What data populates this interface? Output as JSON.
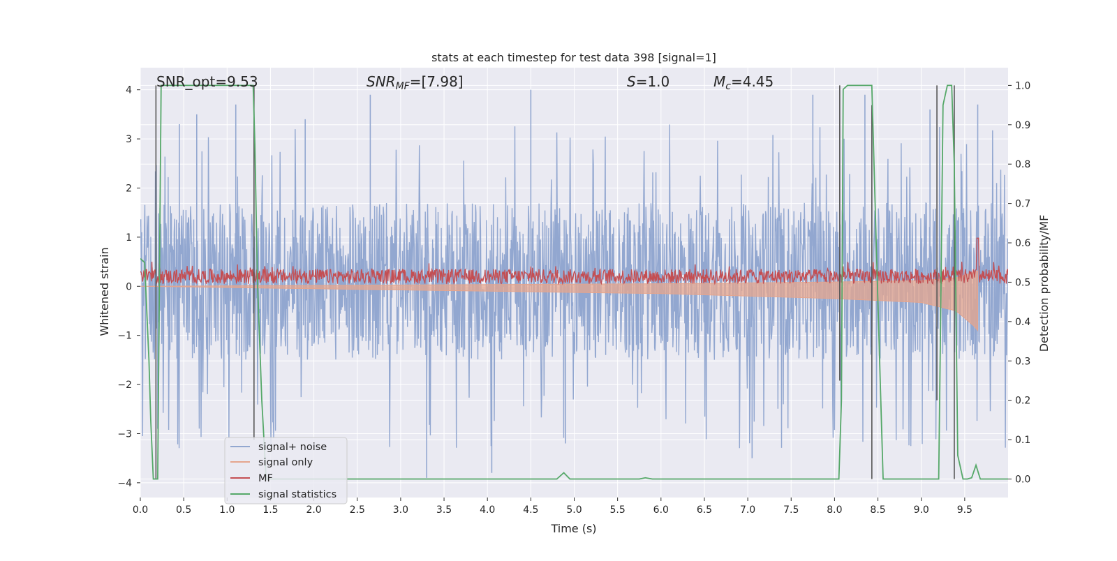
{
  "chart_data": {
    "type": "line",
    "title": "stats at each timestep for test data 398 [signal=1]",
    "xlabel": "Time (s)",
    "ylabel": "Whitened strain",
    "y2label": "Detection probability/MF",
    "xlim": [
      0.0,
      10.0
    ],
    "ylim": [
      -4.3,
      4.45
    ],
    "y2lim": [
      -0.047,
      1.045
    ],
    "xticks": [
      "0.0",
      "0.5",
      "1.0",
      "1.5",
      "2.0",
      "2.5",
      "3.0",
      "3.5",
      "4.0",
      "4.5",
      "5.0",
      "5.5",
      "6.0",
      "6.5",
      "7.0",
      "7.5",
      "8.0",
      "8.5",
      "9.0",
      "9.5"
    ],
    "yticks": [
      "−4",
      "−3",
      "−2",
      "−1",
      "0",
      "1",
      "2",
      "3",
      "4"
    ],
    "y2ticks": [
      "0.0",
      "0.1",
      "0.2",
      "0.3",
      "0.4",
      "0.5",
      "0.6",
      "0.7",
      "0.8",
      "0.9",
      "1.0"
    ],
    "grid": true,
    "legend_position": "lower-left",
    "annotations": {
      "snr_opt": "SNR_opt=9.53",
      "snr_mf_sym": "SNR",
      "snr_mf_sub": "MF",
      "snr_mf_val": "=[7.98]",
      "s_sym": "S",
      "s_val": "=1.0",
      "mc_sym": "M",
      "mc_sub": "c",
      "mc_val": "=4.45"
    },
    "colors": {
      "signal_noise": "#92a7d0",
      "signal_only": "#e5a58d",
      "mf": "#c44e52",
      "signal_statistics": "#55a868",
      "markers": "#555555",
      "plot_bg": "#eaeaf2"
    },
    "series": [
      {
        "name": "signal+ noise",
        "axis": "left",
        "noise_band": [
          -1.5,
          1.7
        ],
        "peak_spikes": [
          {
            "x": 0.2,
            "y": -2.9
          },
          {
            "x": 0.45,
            "y": 3.3
          },
          {
            "x": 0.65,
            "y": 3.5
          },
          {
            "x": 1.1,
            "y": 3.7
          },
          {
            "x": 1.9,
            "y": 3.4
          },
          {
            "x": 2.65,
            "y": 3.9
          },
          {
            "x": 3.3,
            "y": -3.9
          },
          {
            "x": 4.05,
            "y": -3.8
          },
          {
            "x": 4.5,
            "y": 4.0
          },
          {
            "x": 4.9,
            "y": -3.2
          },
          {
            "x": 7.05,
            "y": -3.5
          },
          {
            "x": 7.75,
            "y": 3.9
          },
          {
            "x": 8.35,
            "y": 3.9
          },
          {
            "x": 9.1,
            "y": 3.6
          },
          {
            "x": 9.65,
            "y": 3.7
          }
        ]
      },
      {
        "name": "signal only",
        "axis": "left",
        "envelope": [
          {
            "x": 0.0,
            "y": 0.0
          },
          {
            "x": 2.0,
            "y": 0.05
          },
          {
            "x": 4.0,
            "y": 0.1
          },
          {
            "x": 6.0,
            "y": 0.15
          },
          {
            "x": 8.0,
            "y": 0.25
          },
          {
            "x": 9.0,
            "y": 0.33
          },
          {
            "x": 9.4,
            "y": 0.5
          },
          {
            "x": 9.6,
            "y": 0.8
          },
          {
            "x": 9.65,
            "y": 0.9
          }
        ]
      },
      {
        "name": "MF",
        "axis": "left",
        "band": [
          0.05,
          0.35
        ],
        "peak": {
          "x": 9.65,
          "y": 0.98
        }
      },
      {
        "name": "signal statistics",
        "axis": "right",
        "x": [
          0.0,
          0.05,
          0.1,
          0.12,
          0.15,
          0.2,
          0.24,
          0.27,
          0.3,
          0.5,
          1.0,
          1.3,
          1.32,
          1.35,
          1.4,
          1.45,
          1.5,
          2.0,
          3.0,
          4.0,
          4.8,
          4.88,
          4.95,
          5.5,
          5.75,
          5.82,
          5.9,
          6.5,
          7.5,
          8.05,
          8.08,
          8.1,
          8.15,
          8.3,
          8.43,
          8.48,
          8.52,
          8.56,
          9.0,
          9.2,
          9.22,
          9.25,
          9.3,
          9.35,
          9.38,
          9.42,
          9.48,
          9.53,
          9.58,
          9.63,
          9.68,
          9.73,
          10.0
        ],
        "values": [
          0.56,
          0.55,
          0.3,
          0.15,
          0.0,
          0.0,
          1.0,
          1.0,
          1.0,
          1.0,
          1.0,
          1.0,
          0.85,
          0.5,
          0.2,
          0.0,
          0.0,
          0.0,
          0.0,
          0.0,
          0.0,
          0.016,
          0.0,
          0.0,
          0.0,
          0.003,
          0.0,
          0.0,
          0.0,
          0.0,
          0.2,
          0.99,
          1.0,
          1.0,
          1.0,
          0.6,
          0.3,
          0.0,
          0.0,
          0.0,
          0.35,
          0.95,
          1.0,
          1.0,
          0.8,
          0.06,
          0.0,
          0.0,
          0.003,
          0.035,
          0.0,
          0.0,
          0.0
        ]
      }
    ],
    "vertical_markers": [
      {
        "x": 0.18,
        "y0": 0.0,
        "y1": 1.0
      },
      {
        "x": 1.31,
        "y0": 0.1,
        "y1": 1.0
      },
      {
        "x": 8.06,
        "y0": 0.25,
        "y1": 1.0
      },
      {
        "x": 8.43,
        "y0": 0.0,
        "y1": 0.95
      },
      {
        "x": 9.18,
        "y0": 0.2,
        "y1": 1.0
      },
      {
        "x": 9.38,
        "y0": 0.0,
        "y1": 1.0
      }
    ]
  }
}
